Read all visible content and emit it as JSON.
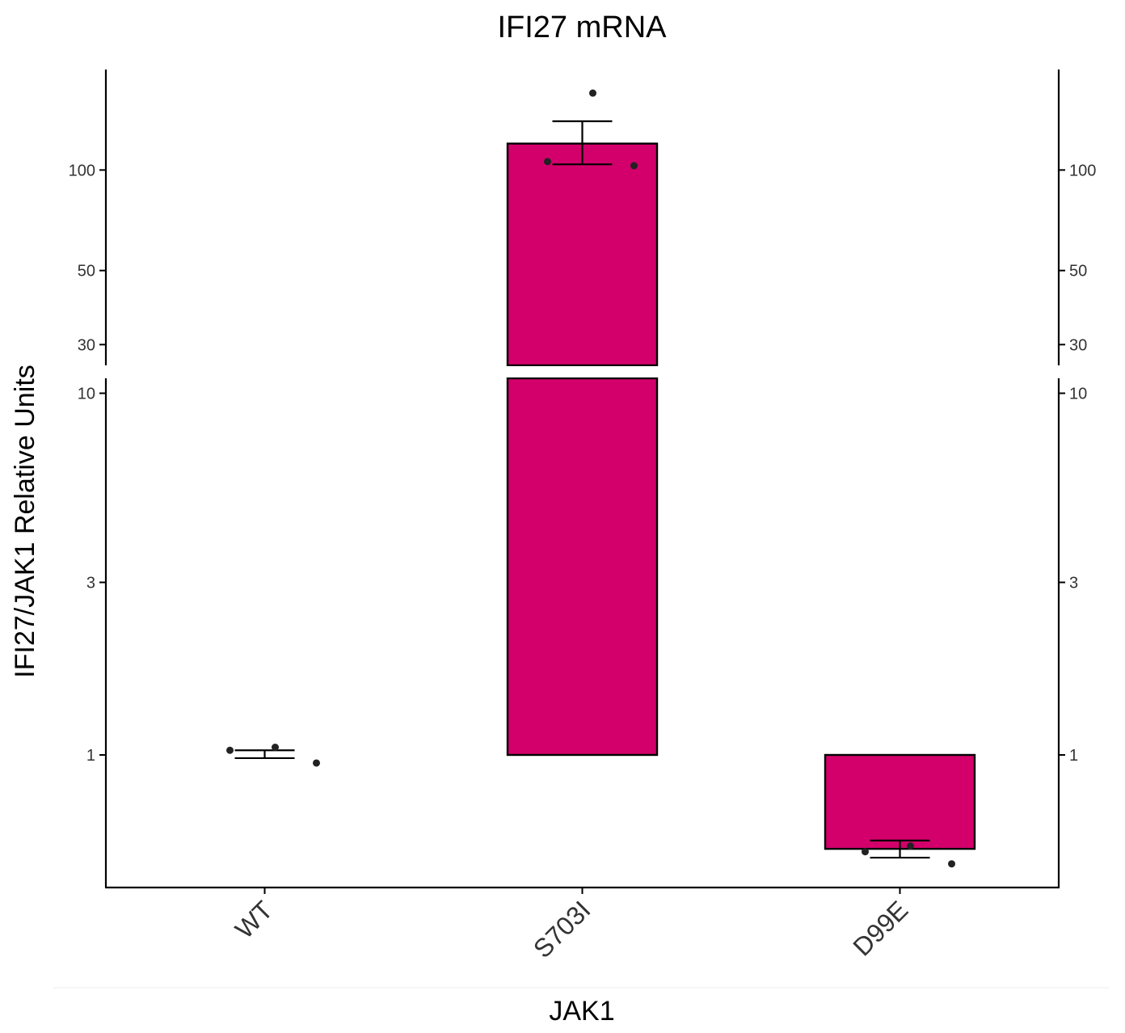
{
  "chart_data": {
    "type": "bar",
    "title": "IFI27 mRNA",
    "xlabel": "JAK1",
    "ylabel": "IFI27/JAK1 Relative Units",
    "y_scale": "log",
    "y_axis_break": [
      11,
      26
    ],
    "ylim_lower_panel": [
      0.43,
      11
    ],
    "ylim_upper_panel": [
      26,
      200
    ],
    "yticks": [
      1,
      3,
      10,
      30,
      50,
      100
    ],
    "ytick_labels": [
      "1",
      "3",
      "10",
      "30",
      "50",
      "100"
    ],
    "categories": [
      "WT",
      "S703I",
      "D99E"
    ],
    "baseline": 1,
    "values": [
      1.0,
      120,
      0.55
    ],
    "error_low": [
      0.98,
      104,
      0.52
    ],
    "error_high": [
      1.03,
      140,
      0.58
    ],
    "points": [
      [
        1.03,
        1.05,
        0.95
      ],
      [
        106,
        170,
        103
      ],
      [
        0.54,
        0.56,
        0.5
      ]
    ],
    "bar_color": "#d3006b",
    "point_color": "#222222",
    "secondary_axis": "right, same ticks",
    "grid": false,
    "legend": "none"
  }
}
